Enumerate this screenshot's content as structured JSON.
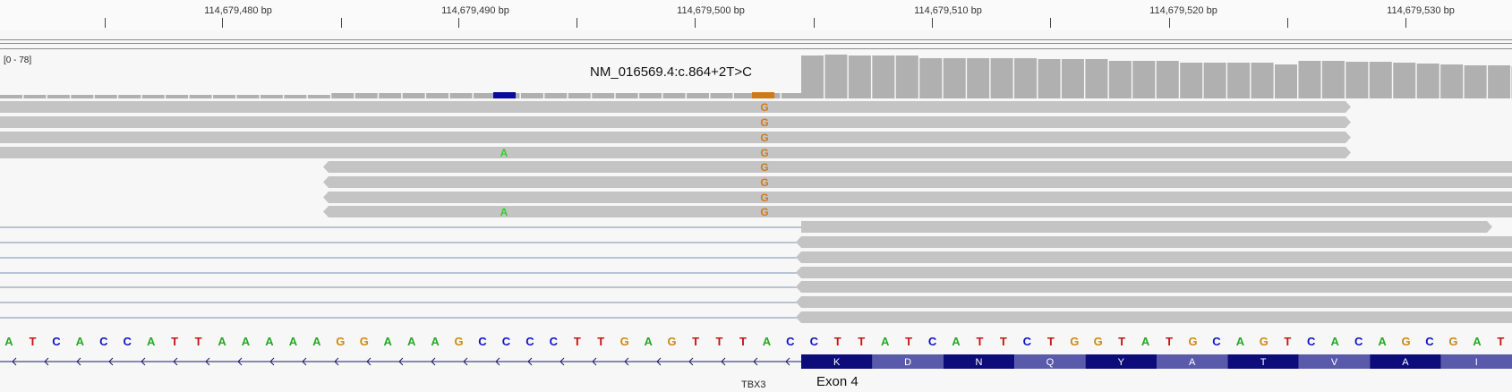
{
  "ruler": {
    "labels": [
      "114,679,480 bp",
      "114,679,490 bp",
      "114,679,500 bp",
      "114,679,510 bp",
      "114,679,520 bp",
      "114,679,530 bp"
    ]
  },
  "coverage": {
    "range_label": "[0 - 78]",
    "bar_color": "#b0b0b0",
    "mismatch_colors": [
      "#0a0a9c",
      "#cc7a1a"
    ]
  },
  "variant": {
    "label": "NM_016569.4:c.864+2T>C"
  },
  "reads": {
    "mismatch_base_G": "G",
    "mismatch_base_A": "A",
    "read_color": "#c4c4c4",
    "g_color": "#d07b1a",
    "a_color": "#33cc33"
  },
  "sequence": {
    "bases": "ATCACCATTAAAAAGGAAAGCCCCTTGAGTTTACCTTATCATTCTGGTATGCAGTCACAGCGAT",
    "colors": {
      "A": "#22aa22",
      "T": "#cc1111",
      "C": "#1111cc",
      "G": "#cc8a14"
    }
  },
  "gene": {
    "name": "TBX3",
    "exon_label": "Exon 4",
    "amino_acids": [
      "K",
      "D",
      "N",
      "Q",
      "Y",
      "A",
      "T",
      "V",
      "A",
      "I"
    ],
    "dark_color": "#0c0c7a",
    "light_color": "#5a5aaa"
  }
}
